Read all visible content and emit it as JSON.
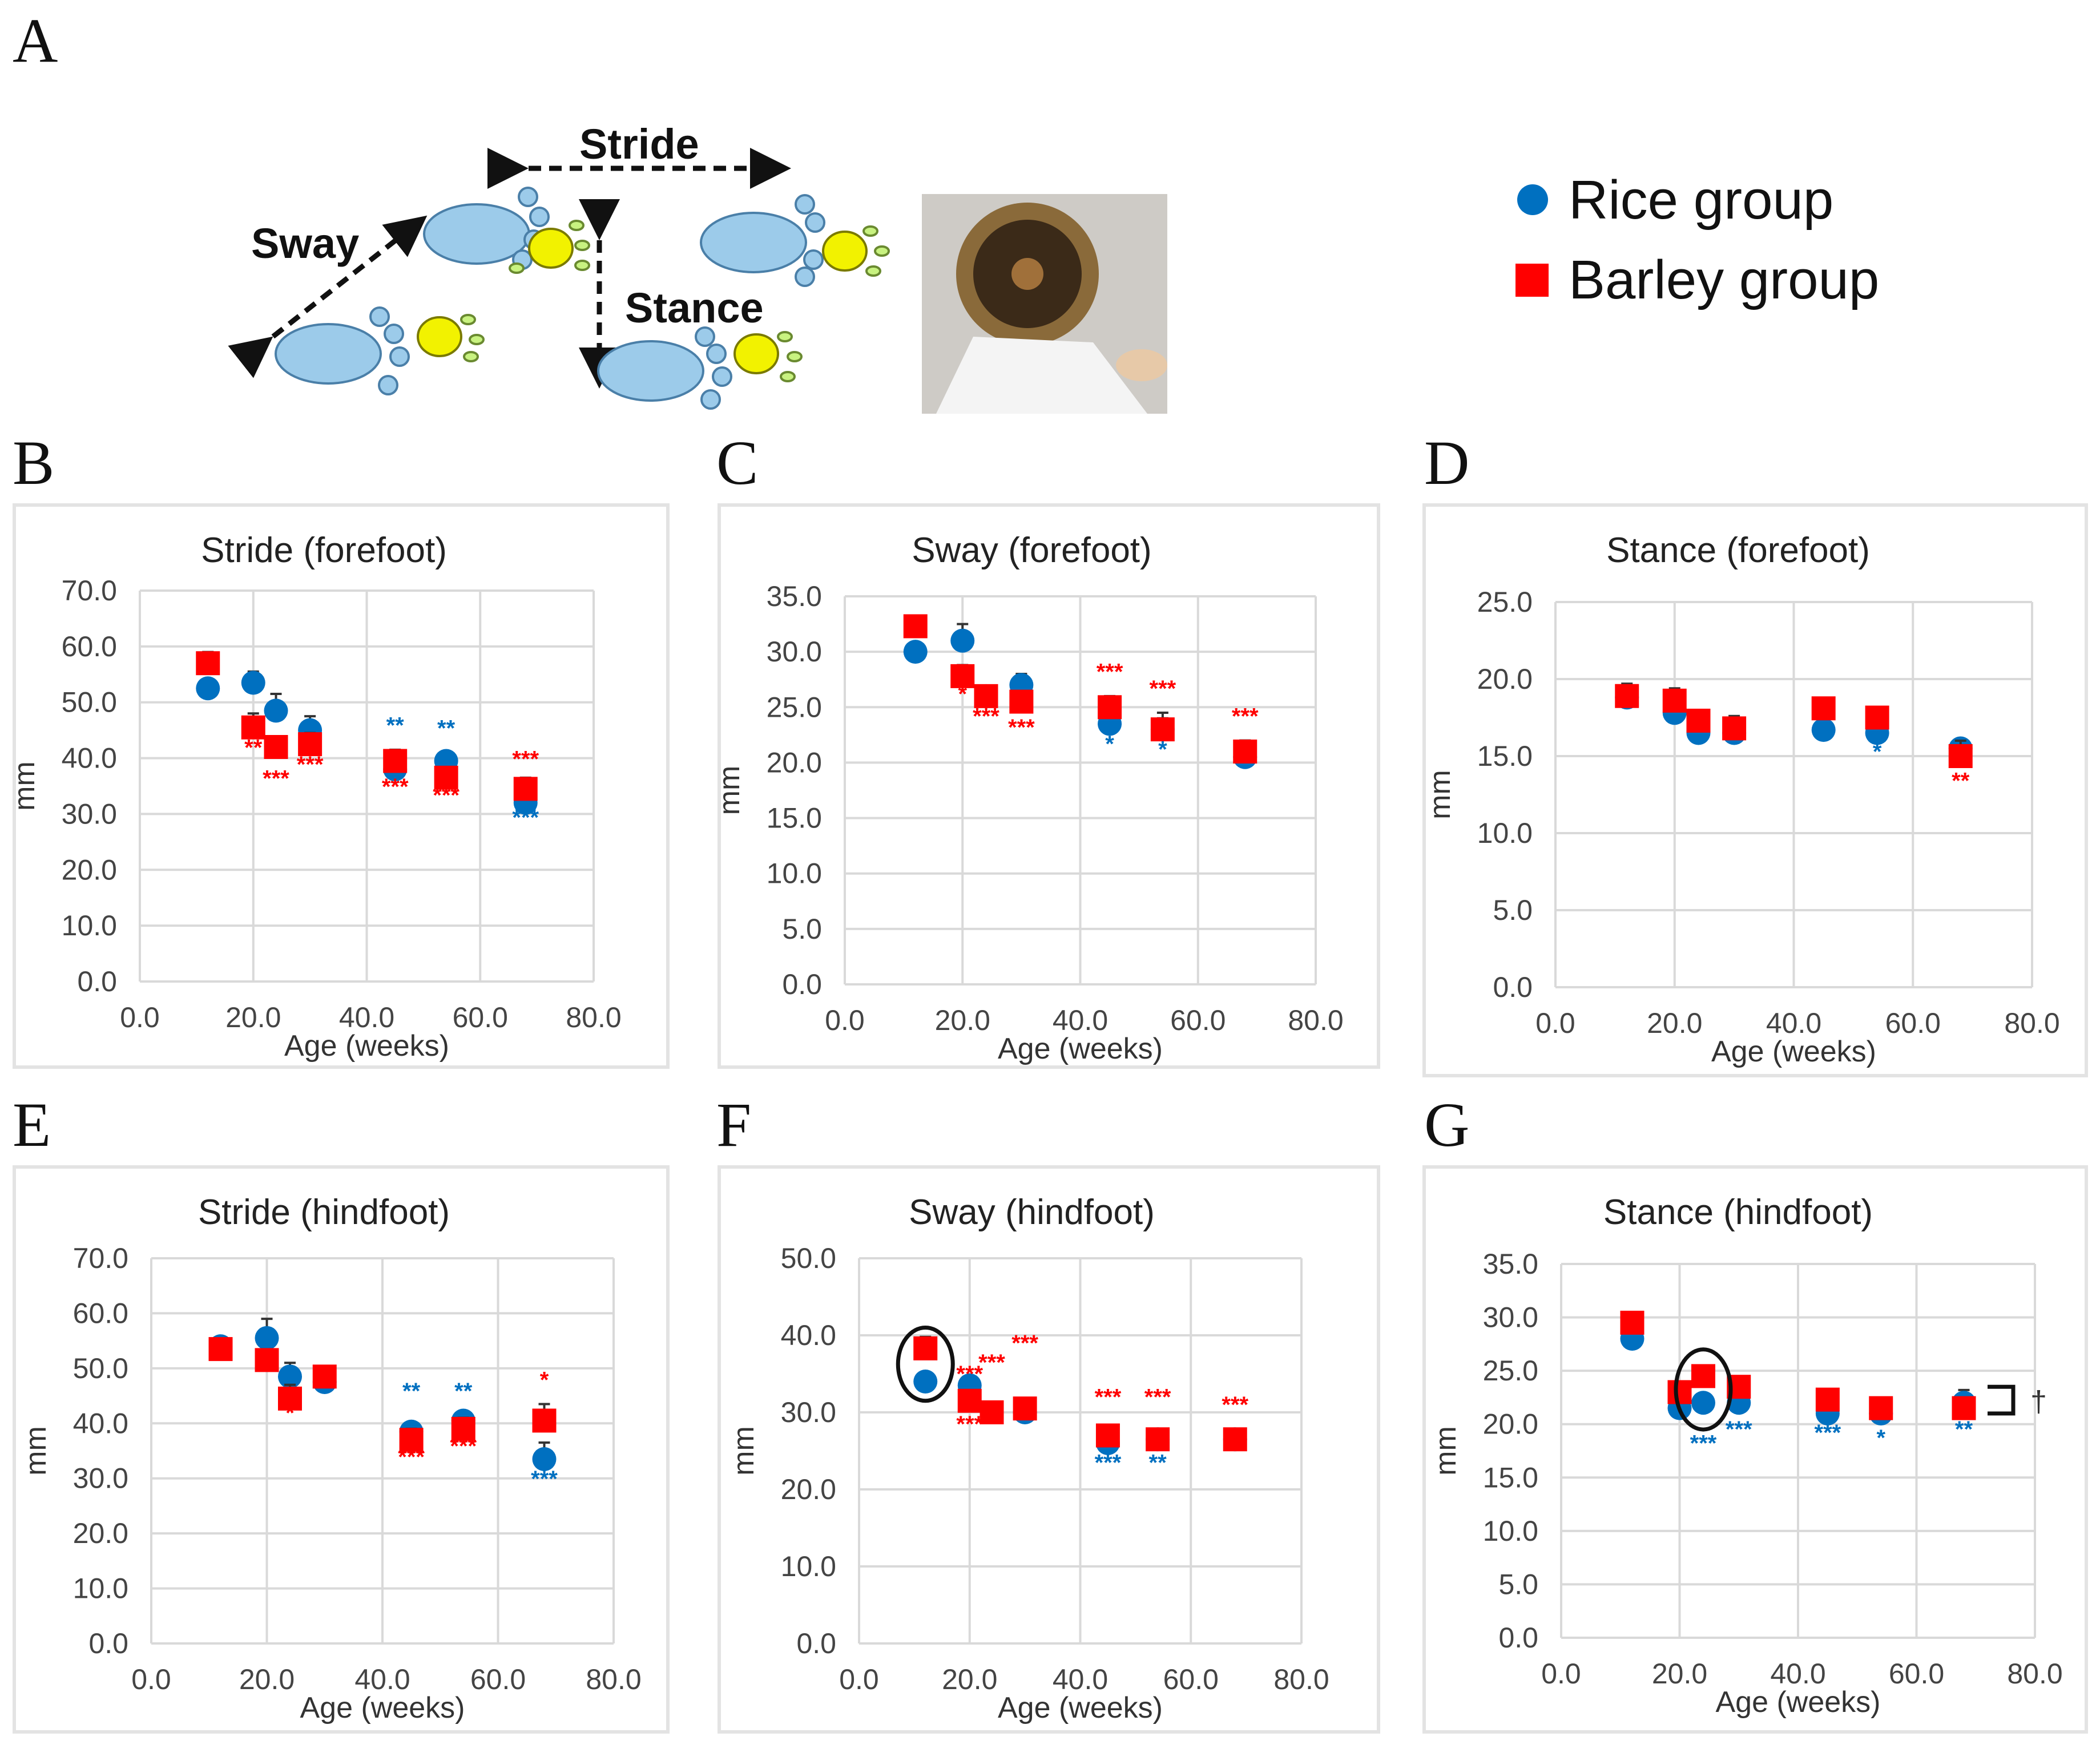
{
  "panel_letters": {
    "A": "A",
    "B": "B",
    "C": "C",
    "D": "D",
    "E": "E",
    "F": "F",
    "G": "G"
  },
  "diagram": {
    "labels": {
      "stride": "Stride",
      "sway": "Sway",
      "stance": "Stance"
    },
    "photo_icon": "tunnel-photo-icon"
  },
  "legend": {
    "rice": {
      "label": "Rice group",
      "color": "#0070C0"
    },
    "barley": {
      "label": "Barley group",
      "color": "#FF0000"
    }
  },
  "colors": {
    "rice": "#0070C0",
    "barley": "#FF0000",
    "grid": "#d9d9d9"
  },
  "chart_data": [
    {
      "id": "B",
      "type": "scatter",
      "title": "Stride (forefoot)",
      "xlabel": "Age (weeks)",
      "ylabel": "mm",
      "xlim": [
        0,
        80
      ],
      "ylim": [
        0,
        70
      ],
      "xticks": [
        "0.0",
        "20.0",
        "40.0",
        "60.0",
        "80.0"
      ],
      "yticks": [
        "0.0",
        "10.0",
        "20.0",
        "30.0",
        "40.0",
        "50.0",
        "60.0",
        "70.0"
      ],
      "x": [
        12,
        20,
        24,
        30,
        45,
        54,
        68
      ],
      "series": [
        {
          "name": "Rice group",
          "values": [
            52.5,
            53.5,
            48.5,
            45.0,
            38.0,
            39.5,
            32.0
          ],
          "err": [
            0,
            2,
            3,
            2.5,
            2,
            1.5,
            1.5
          ]
        },
        {
          "name": "Barley group",
          "values": [
            57.0,
            45.5,
            42.0,
            42.5,
            39.5,
            36.5,
            34.5
          ],
          "err": [
            2,
            2.5,
            1.5,
            2,
            2,
            1.5,
            2
          ]
        }
      ],
      "annotations": [
        {
          "x": 20,
          "y": 40.5,
          "text": "**",
          "group": "barley"
        },
        {
          "x": 24,
          "y": 35.0,
          "text": "***",
          "group": "barley"
        },
        {
          "x": 30,
          "y": 37.5,
          "text": "***",
          "group": "barley"
        },
        {
          "x": 45,
          "y": 44.5,
          "text": "**",
          "group": "rice"
        },
        {
          "x": 45,
          "y": 33.5,
          "text": "***",
          "group": "barley"
        },
        {
          "x": 54,
          "y": 44.0,
          "text": "**",
          "group": "rice"
        },
        {
          "x": 54,
          "y": 32.0,
          "text": "***",
          "group": "barley"
        },
        {
          "x": 68,
          "y": 38.5,
          "text": "***",
          "group": "barley"
        },
        {
          "x": 68,
          "y": 28.0,
          "text": "***",
          "group": "rice"
        }
      ]
    },
    {
      "id": "C",
      "type": "scatter",
      "title": "Sway (forefoot)",
      "xlabel": "Age (weeks)",
      "ylabel": "mm",
      "xlim": [
        0,
        80
      ],
      "ylim": [
        0,
        35
      ],
      "xticks": [
        "0.0",
        "20.0",
        "40.0",
        "60.0",
        "80.0"
      ],
      "yticks": [
        "0.0",
        "5.0",
        "10.0",
        "15.0",
        "20.0",
        "25.0",
        "30.0",
        "35.0"
      ],
      "x": [
        12,
        20,
        24,
        30,
        45,
        54,
        68
      ],
      "series": [
        {
          "name": "Rice group",
          "values": [
            30.0,
            31.0,
            26.0,
            27.0,
            23.5,
            23.0,
            20.5
          ],
          "err": [
            0,
            1.5,
            0.8,
            1.0,
            1.0,
            1.0,
            0.8
          ]
        },
        {
          "name": "Barley group",
          "values": [
            32.3,
            27.8,
            26.0,
            25.5,
            25.0,
            23.0,
            21.0
          ],
          "err": [
            0.8,
            1.0,
            0.8,
            0.8,
            1.0,
            1.5,
            1.0
          ]
        }
      ],
      "annotations": [
        {
          "x": 20,
          "y": 25.5,
          "text": "*",
          "group": "barley"
        },
        {
          "x": 24,
          "y": 23.5,
          "text": "***",
          "group": "barley"
        },
        {
          "x": 30,
          "y": 22.5,
          "text": "***",
          "group": "barley"
        },
        {
          "x": 45,
          "y": 27.5,
          "text": "***",
          "group": "barley"
        },
        {
          "x": 45,
          "y": 21.0,
          "text": "*",
          "group": "rice"
        },
        {
          "x": 54,
          "y": 26.0,
          "text": "***",
          "group": "barley"
        },
        {
          "x": 54,
          "y": 20.5,
          "text": "*",
          "group": "rice"
        },
        {
          "x": 68,
          "y": 23.5,
          "text": "***",
          "group": "barley"
        }
      ]
    },
    {
      "id": "D",
      "type": "scatter",
      "title": "Stance (forefoot)",
      "xlabel": "Age (weeks)",
      "ylabel": "mm",
      "xlim": [
        0,
        80
      ],
      "ylim": [
        0,
        25
      ],
      "xticks": [
        "0.0",
        "20.0",
        "40.0",
        "60.0",
        "80.0"
      ],
      "yticks": [
        "0.0",
        "5.0",
        "10.0",
        "15.0",
        "20.0",
        "25.0"
      ],
      "x": [
        12,
        20,
        24,
        30,
        45,
        54,
        68
      ],
      "series": [
        {
          "name": "Rice group",
          "values": [
            18.8,
            17.8,
            16.5,
            16.5,
            16.7,
            16.5,
            15.5
          ],
          "err": [
            0.8,
            0.8,
            0.5,
            0.8,
            0.5,
            0.5,
            0.5
          ]
        },
        {
          "name": "Barley group",
          "values": [
            18.9,
            18.6,
            17.3,
            16.8,
            18.1,
            17.5,
            15.0
          ],
          "err": [
            0.8,
            0.8,
            0.6,
            0.8,
            0.6,
            0.6,
            1.0
          ]
        }
      ],
      "annotations": [
        {
          "x": 54,
          "y": 14.8,
          "text": "*",
          "group": "rice"
        },
        {
          "x": 68,
          "y": 12.9,
          "text": "**",
          "group": "barley"
        }
      ]
    },
    {
      "id": "E",
      "type": "scatter",
      "title": "Stride (hindfoot)",
      "xlabel": "Age (weeks)",
      "ylabel": "mm",
      "xlim": [
        0,
        80
      ],
      "ylim": [
        0,
        70
      ],
      "xticks": [
        "0.0",
        "20.0",
        "40.0",
        "60.0",
        "80.0"
      ],
      "yticks": [
        "0.0",
        "10.0",
        "20.0",
        "30.0",
        "40.0",
        "50.0",
        "60.0",
        "70.0"
      ],
      "x": [
        12,
        20,
        24,
        30,
        45,
        54,
        68
      ],
      "series": [
        {
          "name": "Rice group",
          "values": [
            54.0,
            55.5,
            48.5,
            47.5,
            38.5,
            40.5,
            33.5
          ],
          "err": [
            1.5,
            3.5,
            2.5,
            1.5,
            1.5,
            1.5,
            3.0
          ]
        },
        {
          "name": "Barley group",
          "values": [
            53.5,
            51.5,
            44.5,
            48.5,
            37.0,
            39.0,
            40.5
          ],
          "err": [
            1.5,
            1.5,
            2.5,
            1.5,
            2.0,
            2.0,
            3.0
          ]
        }
      ],
      "annotations": [
        {
          "x": 24,
          "y": 40.5,
          "text": "*",
          "group": "barley"
        },
        {
          "x": 45,
          "y": 44.5,
          "text": "**",
          "group": "rice"
        },
        {
          "x": 45,
          "y": 32.5,
          "text": "***",
          "group": "barley"
        },
        {
          "x": 54,
          "y": 44.5,
          "text": "**",
          "group": "rice"
        },
        {
          "x": 54,
          "y": 34.5,
          "text": "***",
          "group": "barley"
        },
        {
          "x": 68,
          "y": 46.5,
          "text": "*",
          "group": "barley"
        },
        {
          "x": 68,
          "y": 28.5,
          "text": "***",
          "group": "rice"
        }
      ]
    },
    {
      "id": "F",
      "type": "scatter",
      "title": "Sway (hindfoot)",
      "xlabel": "Age (weeks)",
      "ylabel": "mm",
      "xlim": [
        0,
        80
      ],
      "ylim": [
        0,
        50
      ],
      "xticks": [
        "0.0",
        "20.0",
        "40.0",
        "60.0",
        "80.0"
      ],
      "yticks": [
        "0.0",
        "10.0",
        "20.0",
        "30.0",
        "40.0",
        "50.0"
      ],
      "x": [
        12,
        20,
        24,
        30,
        45,
        54,
        68
      ],
      "series": [
        {
          "name": "Rice group",
          "values": [
            34.0,
            33.5,
            30.0,
            30.0,
            26.0,
            26.5,
            26.5
          ],
          "err": [
            0,
            1.0,
            1.0,
            1.0,
            1.0,
            1.0,
            1.0
          ]
        },
        {
          "name": "Barley group",
          "values": [
            38.3,
            31.5,
            30.0,
            30.5,
            27.0,
            26.5,
            26.5
          ],
          "err": [
            1.5,
            1.0,
            1.0,
            1.0,
            1.0,
            1.0,
            1.0
          ]
        }
      ],
      "annotations": [
        {
          "x": 20,
          "y": 34.0,
          "text": "***",
          "group": "barley"
        },
        {
          "x": 20,
          "y": 27.5,
          "text": "***",
          "group": "barley"
        },
        {
          "x": 24,
          "y": 35.5,
          "text": "***",
          "group": "barley"
        },
        {
          "x": 30,
          "y": 38.0,
          "text": "***",
          "group": "barley"
        },
        {
          "x": 45,
          "y": 31.0,
          "text": "***",
          "group": "barley"
        },
        {
          "x": 45,
          "y": 22.5,
          "text": "***",
          "group": "rice"
        },
        {
          "x": 54,
          "y": 31.0,
          "text": "***",
          "group": "barley"
        },
        {
          "x": 54,
          "y": 22.5,
          "text": "**",
          "group": "rice"
        },
        {
          "x": 68,
          "y": 30.0,
          "text": "***",
          "group": "barley"
        }
      ],
      "highlight": {
        "x": 12,
        "ymin": 31.5,
        "ymax": 41.0
      }
    },
    {
      "id": "G",
      "type": "scatter",
      "title": "Stance (hindfoot)",
      "xlabel": "Age (weeks)",
      "ylabel": "mm",
      "xlim": [
        0,
        80
      ],
      "ylim": [
        0,
        35
      ],
      "xticks": [
        "0.0",
        "20.0",
        "40.0",
        "60.0",
        "80.0"
      ],
      "yticks": [
        "0.0",
        "5.0",
        "10.0",
        "15.0",
        "20.0",
        "25.0",
        "30.0",
        "35.0"
      ],
      "x": [
        12,
        20,
        24,
        30,
        45,
        54,
        68
      ],
      "series": [
        {
          "name": "Rice group",
          "values": [
            28.0,
            21.5,
            22.0,
            22.0,
            21.0,
            21.0,
            22.0
          ],
          "err": [
            0.5,
            0.8,
            0.8,
            0.8,
            0.8,
            0.8,
            1.2
          ]
        },
        {
          "name": "Barley group",
          "values": [
            29.5,
            23.0,
            24.5,
            23.5,
            22.3,
            21.5,
            21.5
          ],
          "err": [
            0.8,
            0.8,
            1.0,
            0.8,
            0.8,
            0.8,
            1.0
          ]
        }
      ],
      "annotations": [
        {
          "x": 24,
          "y": 17.5,
          "text": "***",
          "group": "rice"
        },
        {
          "x": 30,
          "y": 18.8,
          "text": "***",
          "group": "rice"
        },
        {
          "x": 45,
          "y": 18.5,
          "text": "***",
          "group": "rice"
        },
        {
          "x": 54,
          "y": 18.0,
          "text": "*",
          "group": "rice"
        },
        {
          "x": 68,
          "y": 18.8,
          "text": "**",
          "group": "rice"
        }
      ],
      "highlight": {
        "x": 24,
        "ymin": 19.5,
        "ymax": 27.0
      },
      "bracket": {
        "x": 72,
        "ymin": 21.0,
        "ymax": 23.5,
        "text": "†"
      }
    }
  ]
}
